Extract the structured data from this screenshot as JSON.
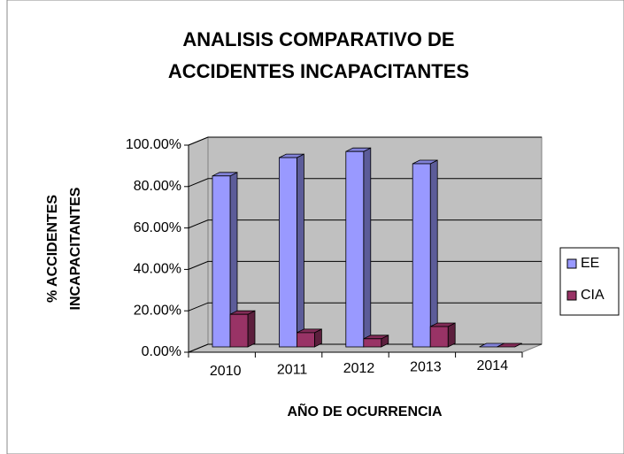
{
  "chart_data": {
    "type": "bar3d",
    "title": [
      "ANALISIS COMPARATIVO DE",
      "ACCIDENTES INCAPACITANTES"
    ],
    "x_label": "AÑO DE OCURRENCIA",
    "y_label": [
      "% ACCIDENTES",
      "INCAPACITANTES"
    ],
    "categories": [
      "2010",
      "2011",
      "2012",
      "2013",
      "2014"
    ],
    "series": [
      {
        "name": "EE",
        "color": "#9999ff",
        "values": [
          84,
          93,
          96,
          90,
          0
        ]
      },
      {
        "name": "CIA",
        "color": "#993366",
        "values": [
          16,
          7,
          4,
          10,
          0
        ]
      }
    ],
    "ylim": [
      0,
      100
    ],
    "yticks": [
      {
        "value": 0,
        "label": "0.00%"
      },
      {
        "value": 20,
        "label": "20.00%"
      },
      {
        "value": 40,
        "label": "40.00%"
      },
      {
        "value": 60,
        "label": "60.00%"
      },
      {
        "value": 80,
        "label": "80.00%"
      },
      {
        "value": 100,
        "label": "100.00%"
      }
    ],
    "grid": true,
    "legend": "right"
  }
}
